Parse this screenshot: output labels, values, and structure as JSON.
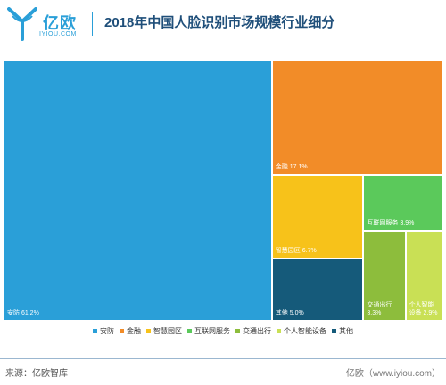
{
  "brand": {
    "name_cn": "亿欧",
    "name_en": "IYIOU.COM",
    "color": "#2a9fd8"
  },
  "title": "2018年中国人脸识别市场规模行业细分",
  "chart_data": {
    "type": "treemap",
    "unit": "%",
    "categories": [
      "安防",
      "金融",
      "智慧园区",
      "互联网服务",
      "交通出行",
      "个人智能设备",
      "其他"
    ],
    "values": [
      61.2,
      17.1,
      6.7,
      3.9,
      3.3,
      2.9,
      5.0
    ],
    "labels": [
      "安防 61.2%",
      "金融 17.1%",
      "智慧园区 6.7%",
      "互联网服务 3.9%",
      "交通出行\n3.3%",
      "个人智能\n设备 2.9%",
      "其他 5.0%"
    ],
    "colors": [
      "#2a9fd8",
      "#f28c28",
      "#f7c21a",
      "#5bc95b",
      "#8dbd3c",
      "#c9e055",
      "#155a7a"
    ],
    "legend": {
      "position": "bottom"
    }
  },
  "footer": {
    "source": "来源：亿欧智库",
    "site": "亿欧（www.iyiou.com）"
  }
}
